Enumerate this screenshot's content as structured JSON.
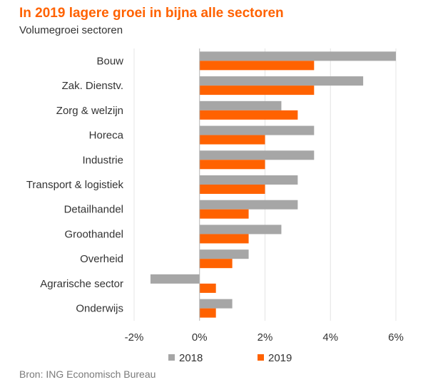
{
  "chart_data": {
    "type": "bar",
    "orientation": "horizontal",
    "title": "In 2019 lagere groei in bijna alle sectoren",
    "subtitle": "Volumegroei sectoren",
    "source": "Bron: ING Economisch Bureau",
    "categories": [
      "Bouw",
      "Zak. Dienstv.",
      "Zorg & welzijn",
      "Horeca",
      "Industrie",
      "Transport & logistiek",
      "Detailhandel",
      "Groothandel",
      "Overheid",
      "Agrarische sector",
      "Onderwijs"
    ],
    "series": [
      {
        "name": "2018",
        "color": "#A6A6A6",
        "values": [
          6,
          5,
          2.5,
          3.5,
          3.5,
          3,
          3,
          2.5,
          1.5,
          -1.5,
          1
        ]
      },
      {
        "name": "2019",
        "color": "#FF6200",
        "values": [
          3.5,
          3.5,
          3,
          2,
          2,
          2,
          1.5,
          1.5,
          1,
          0.5,
          0.5
        ]
      }
    ],
    "xlim": [
      -2,
      6
    ],
    "xticks": [
      "-2%",
      "0%",
      "2%",
      "4%",
      "6%"
    ],
    "xtick_values": [
      -2,
      0,
      2,
      4,
      6
    ],
    "grid": true,
    "legend": "bottom"
  }
}
